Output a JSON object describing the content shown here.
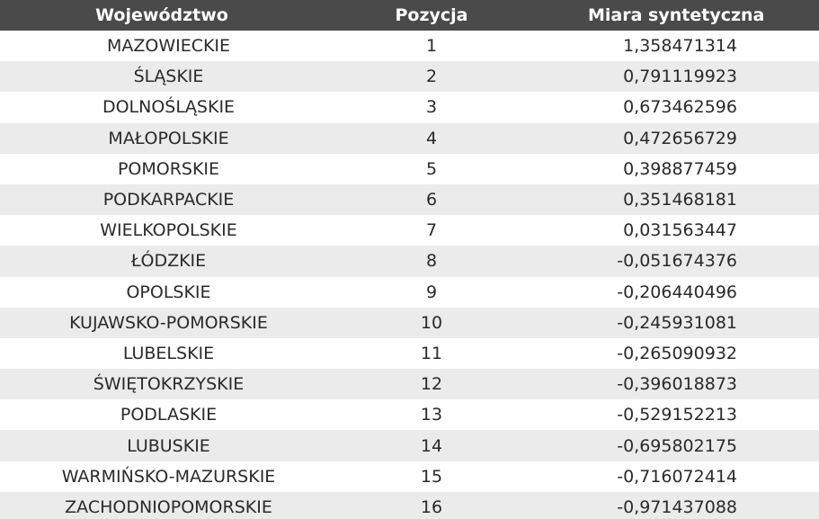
{
  "table": {
    "headers": {
      "region": "Województwo",
      "position": "Pozycja",
      "measure": "Miara syntetyczna"
    },
    "rows": [
      {
        "region": "MAZOWIECKIE",
        "position": "1",
        "measure": "1,358471314"
      },
      {
        "region": "ŚLĄSKIE",
        "position": "2",
        "measure": "0,791119923"
      },
      {
        "region": "DOLNOŚLĄSKIE",
        "position": "3",
        "measure": "0,673462596"
      },
      {
        "region": "MAŁOPOLSKIE",
        "position": "4",
        "measure": "0,472656729"
      },
      {
        "region": "POMORSKIE",
        "position": "5",
        "measure": "0,398877459"
      },
      {
        "region": "PODKARPACKIE",
        "position": "6",
        "measure": "0,351468181"
      },
      {
        "region": "WIELKOPOLSKIE",
        "position": "7",
        "measure": "0,031563447"
      },
      {
        "region": "ŁÓDZKIE",
        "position": "8",
        "measure": "-0,051674376"
      },
      {
        "region": "OPOLSKIE",
        "position": "9",
        "measure": "-0,206440496"
      },
      {
        "region": "KUJAWSKO-POMORSKIE",
        "position": "10",
        "measure": "-0,245931081"
      },
      {
        "region": "LUBELSKIE",
        "position": "11",
        "measure": "-0,265090932"
      },
      {
        "region": "ŚWIĘTOKRZYSKIE",
        "position": "12",
        "measure": "-0,396018873"
      },
      {
        "region": "PODLASKIE",
        "position": "13",
        "measure": "-0,529152213"
      },
      {
        "region": "LUBUSKIE",
        "position": "14",
        "measure": "-0,695802175"
      },
      {
        "region": "WARMIŃSKO-MAZURSKIE",
        "position": "15",
        "measure": "-0,716072414"
      },
      {
        "region": "ZACHODNIOPOMORSKIE",
        "position": "16",
        "measure": "-0,971437088"
      }
    ]
  },
  "colors": {
    "header_bg": "#4a4a4a",
    "header_text": "#ffffff",
    "stripe": "#ebebeb",
    "text": "#2a2a2a"
  }
}
